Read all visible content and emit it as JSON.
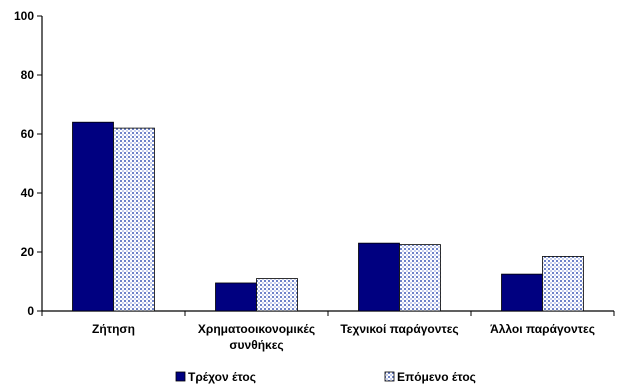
{
  "chart_data": {
    "type": "bar",
    "categories": [
      [
        "Ζήτηση"
      ],
      [
        "Χρηματοοικονομικές",
        "συνθήκες"
      ],
      [
        "Τεχνικοί παράγοντες"
      ],
      [
        "Άλλοι παράγοντες"
      ]
    ],
    "series": [
      {
        "name": "Τρέχον έτος",
        "values": [
          64,
          9.5,
          23,
          12.5
        ],
        "color": "#000080",
        "pattern": "solid"
      },
      {
        "name": "Επόμενο έτος",
        "values": [
          62,
          11,
          22.5,
          18.5
        ],
        "color": "#5b6fb8",
        "pattern": "dotted"
      }
    ],
    "ylim": [
      0,
      100
    ],
    "yticks": [
      0,
      20,
      40,
      60,
      80,
      100
    ],
    "title": "",
    "xlabel": "",
    "ylabel": "",
    "grid": false,
    "legend_position": "bottom"
  }
}
